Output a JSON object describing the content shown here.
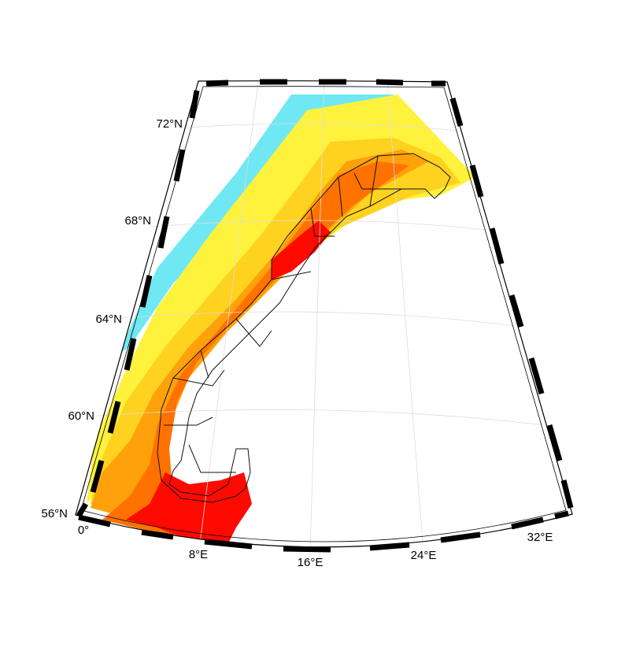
{
  "lat_labels": [
    {
      "id": "lat-72",
      "text": "72°N"
    },
    {
      "id": "lat-68",
      "text": "68°N"
    },
    {
      "id": "lat-64",
      "text": "64°N"
    },
    {
      "id": "lat-60",
      "text": "60°N"
    },
    {
      "id": "lat-56",
      "text": "56°N"
    }
  ],
  "lon_labels": [
    {
      "id": "lon-0",
      "text": "0°"
    },
    {
      "id": "lon-8",
      "text": "8°E"
    },
    {
      "id": "lon-16",
      "text": "16°E"
    },
    {
      "id": "lon-24",
      "text": "24°E"
    },
    {
      "id": "lon-32",
      "text": "32°E"
    }
  ],
  "colors": {
    "cyan": "#6fe8f3",
    "yellow": "#fff23d",
    "gold": "#ffd21f",
    "orange": "#ffa10a",
    "dark_orange": "#ff7200",
    "red": "#ff0a00",
    "frame_black": "#000000",
    "frame_white": "#ffffff",
    "grid": "#dddddd"
  }
}
